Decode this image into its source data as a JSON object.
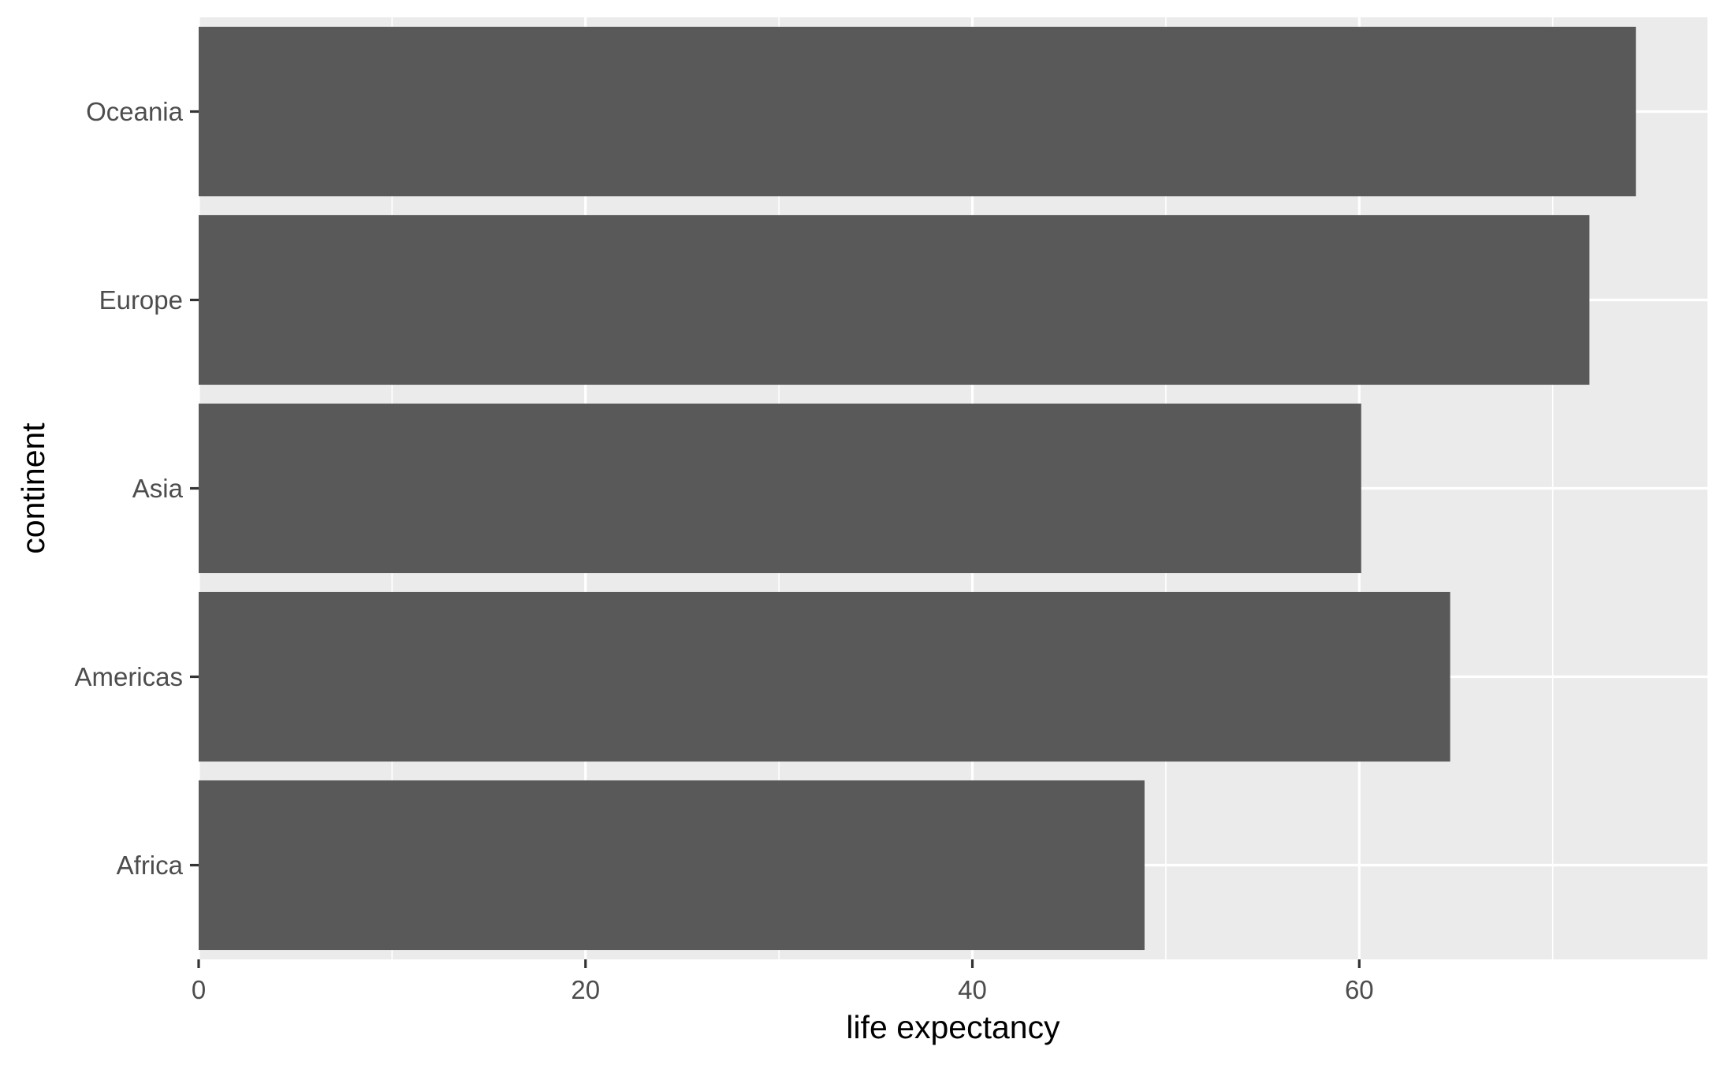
{
  "chart_data": {
    "type": "bar",
    "orientation": "horizontal",
    "categories": [
      "Africa",
      "Americas",
      "Asia",
      "Europe",
      "Oceania"
    ],
    "values": [
      48.9,
      64.7,
      60.1,
      71.9,
      74.3
    ],
    "xlabel": "life expectancy",
    "ylabel": "continent",
    "xlim": [
      0,
      78
    ],
    "x_ticks": [
      0,
      20,
      40,
      60
    ],
    "grid": true,
    "legend": "none"
  },
  "colors": {
    "panel_background": "#ebebeb",
    "grid_major": "#ffffff",
    "bar_fill": "#595959",
    "tick_mark": "#333333",
    "tick_text": "#4d4d4d",
    "axis_title": "#000000"
  }
}
